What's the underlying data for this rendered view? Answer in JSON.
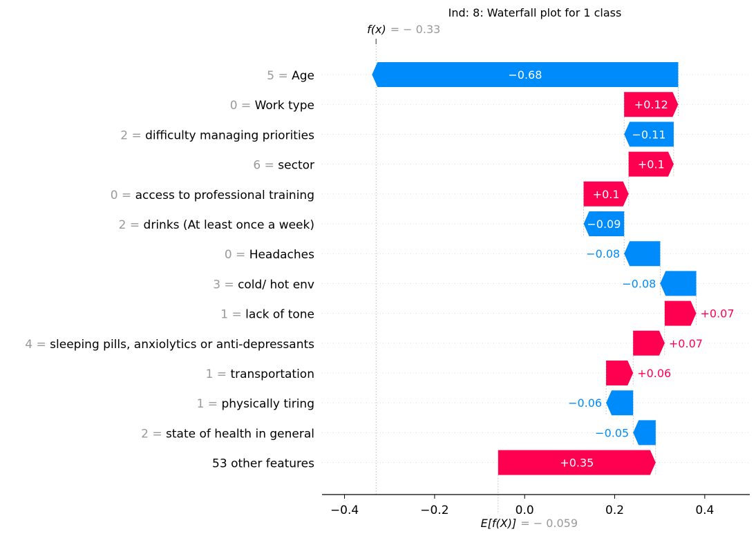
{
  "chart_data": {
    "type": "waterfall",
    "title": "Ind: 8: Waterfall plot for 1 class",
    "base_value": -0.059,
    "output_value": -0.33,
    "fx_label": {
      "name": "f(x)",
      "value_text": "= − 0.33"
    },
    "efx_label": {
      "name": "E[f(X)]",
      "value_text": "= − 0.059"
    },
    "xlim": [
      -0.45,
      0.5
    ],
    "xticks": [
      {
        "value": -0.4,
        "label": "−0.4"
      },
      {
        "value": -0.2,
        "label": "−0.2"
      },
      {
        "value": 0.0,
        "label": "0.0"
      },
      {
        "value": 0.2,
        "label": "0.2"
      },
      {
        "value": 0.4,
        "label": "0.4"
      }
    ],
    "grid": "dotted horizontal lines per feature row",
    "colors": {
      "positive": "#ff0051",
      "negative": "#008bfb",
      "muted": "#999999",
      "axis": "#000000",
      "grid": "#cccccc"
    },
    "features": [
      {
        "value": "5",
        "name": "Age",
        "contribution": -0.68,
        "label": "−0.68"
      },
      {
        "value": "0",
        "name": "Work type",
        "contribution": 0.12,
        "label": "+0.12"
      },
      {
        "value": "2",
        "name": "difficulty managing priorities",
        "contribution": -0.11,
        "label": "−0.11"
      },
      {
        "value": "6",
        "name": "sector",
        "contribution": 0.1,
        "label": "+0.1"
      },
      {
        "value": "0",
        "name": "access to professional training",
        "contribution": 0.1,
        "label": "+0.1"
      },
      {
        "value": "2",
        "name": "drinks (At least once a week)",
        "contribution": -0.09,
        "label": "−0.09"
      },
      {
        "value": "0",
        "name": "Headaches",
        "contribution": -0.08,
        "label": "−0.08"
      },
      {
        "value": "3",
        "name": "cold/ hot env",
        "contribution": -0.08,
        "label": "−0.08"
      },
      {
        "value": "1",
        "name": "lack of tone",
        "contribution": 0.07,
        "label": "+0.07"
      },
      {
        "value": "4",
        "name": "sleeping pills, anxiolytics or anti-depressants",
        "contribution": 0.07,
        "label": "+0.07"
      },
      {
        "value": "1",
        "name": "transportation",
        "contribution": 0.06,
        "label": "+0.06"
      },
      {
        "value": "1",
        "name": "physically tiring",
        "contribution": -0.06,
        "label": "−0.06"
      },
      {
        "value": "2",
        "name": "state of health in general",
        "contribution": -0.05,
        "label": "−0.05"
      },
      {
        "value": "",
        "name": "53 other features",
        "contribution": 0.35,
        "label": "+0.35"
      }
    ]
  }
}
